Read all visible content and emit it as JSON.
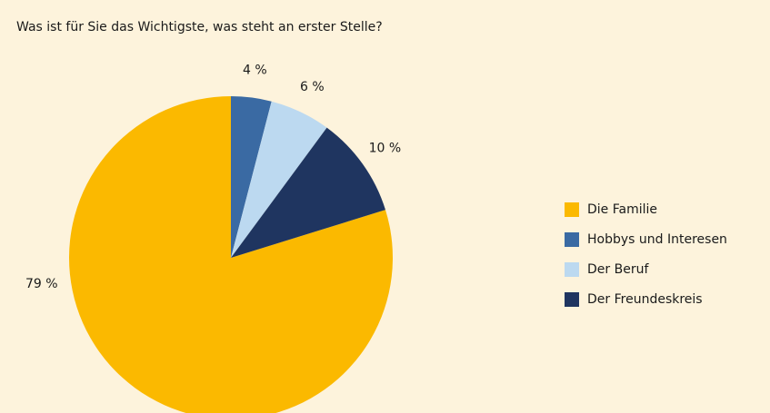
{
  "chart_data": {
    "type": "pie",
    "title": "Was ist für Sie das Wichtigste, was steht an erster Stelle?",
    "categories": [
      "Die Familie",
      "Hobbys und Interesen",
      "Der Beruf",
      "Der Freundeskreis"
    ],
    "values": [
      79,
      4,
      6,
      10
    ],
    "value_labels": [
      "79 %",
      "4 %",
      "6 %",
      "10 %"
    ],
    "colors": [
      "#fbb900",
      "#3a6aa3",
      "#bcd9f0",
      "#1f3560"
    ]
  }
}
